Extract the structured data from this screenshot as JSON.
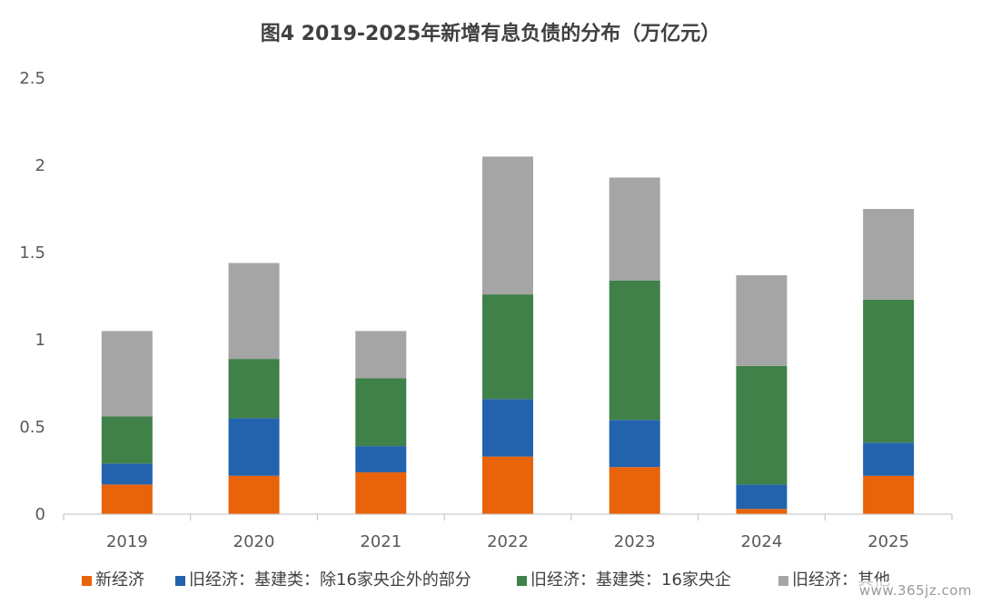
{
  "chart_data": {
    "type": "bar",
    "stacked": true,
    "title": "图4  2019-2025年新增有息负债的分布（万亿元）",
    "xlabel": "",
    "ylabel": "",
    "categories": [
      "2019",
      "2020",
      "2021",
      "2022",
      "2023",
      "2024",
      "2025"
    ],
    "ylim": [
      0,
      2.5
    ],
    "yticks": [
      "0",
      "0.5",
      "1",
      "1.5",
      "2",
      "2.5"
    ],
    "ytick_values": [
      0,
      0.5,
      1,
      1.5,
      2,
      2.5
    ],
    "grid": false,
    "legend_position": "bottom",
    "series": [
      {
        "name": "新经济",
        "color": "#e8630a",
        "values": [
          0.17,
          0.22,
          0.24,
          0.33,
          0.27,
          0.03,
          0.22
        ]
      },
      {
        "name": "旧经济：基建类：除16家央企外的部分",
        "color": "#2363ad",
        "values": [
          0.12,
          0.33,
          0.15,
          0.33,
          0.27,
          0.14,
          0.19
        ]
      },
      {
        "name": "旧经济：基建类：16家央企",
        "color": "#3f8148",
        "values": [
          0.27,
          0.34,
          0.39,
          0.6,
          0.8,
          0.68,
          0.82
        ]
      },
      {
        "name": "旧经济：其他",
        "color": "#a5a5a5",
        "values": [
          0.49,
          0.55,
          0.27,
          0.79,
          0.59,
          0.52,
          0.52
        ]
      }
    ]
  },
  "watermark": "www.365jz.com"
}
